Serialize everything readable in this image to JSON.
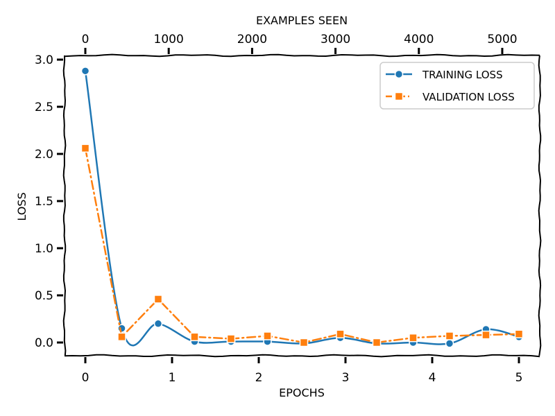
{
  "chart_data": {
    "type": "line",
    "xlabel": "EPOCHS",
    "ylabel": "LOSS",
    "secondary_xlabel": "EXAMPLES SEEN",
    "xlim": [
      -0.15,
      5.15
    ],
    "ylim": [
      -0.12,
      3.02
    ],
    "x_ticks": [
      0,
      1,
      2,
      3,
      4,
      5
    ],
    "x_tick_labels": [
      "0",
      "1",
      "2",
      "3",
      "4",
      "5"
    ],
    "y_ticks": [
      0.0,
      0.5,
      1.0,
      1.5,
      2.0,
      2.5,
      3.0
    ],
    "y_tick_labels": [
      "0.0",
      "0.5",
      "1.0",
      "1.5",
      "2.0",
      "2.5",
      "3.0"
    ],
    "secondary_x_ticks": [
      0,
      1000,
      2000,
      3000,
      4000,
      5000
    ],
    "secondary_x_tick_labels": [
      "0",
      "1000",
      "2000",
      "3000",
      "4000",
      "5000"
    ],
    "secondary_x_per_epoch": 1040,
    "grid": false,
    "legend_position": "top-right",
    "series": [
      {
        "name": "TRAINING LOSS",
        "color": "#1f77b4",
        "marker": "circle",
        "line_style": "solid",
        "x": [
          0,
          0.42,
          0.84,
          1.26,
          1.68,
          2.1,
          2.52,
          2.94,
          3.36,
          3.78,
          4.2,
          4.62,
          5.0
        ],
        "y": [
          2.88,
          0.15,
          0.2,
          0.01,
          0.01,
          0.01,
          -0.01,
          0.05,
          -0.01,
          0.0,
          -0.01,
          0.14,
          0.06
        ]
      },
      {
        "name": "VALIDATION LOSS",
        "color": "#ff7f0e",
        "marker": "square",
        "line_style": "dashdot",
        "x": [
          0,
          0.42,
          0.84,
          1.26,
          1.68,
          2.1,
          2.52,
          2.94,
          3.36,
          3.78,
          4.2,
          4.62,
          5.0
        ],
        "y": [
          2.06,
          0.06,
          0.46,
          0.06,
          0.04,
          0.07,
          0.0,
          0.09,
          0.0,
          0.05,
          0.07,
          0.08,
          0.09
        ]
      }
    ]
  }
}
